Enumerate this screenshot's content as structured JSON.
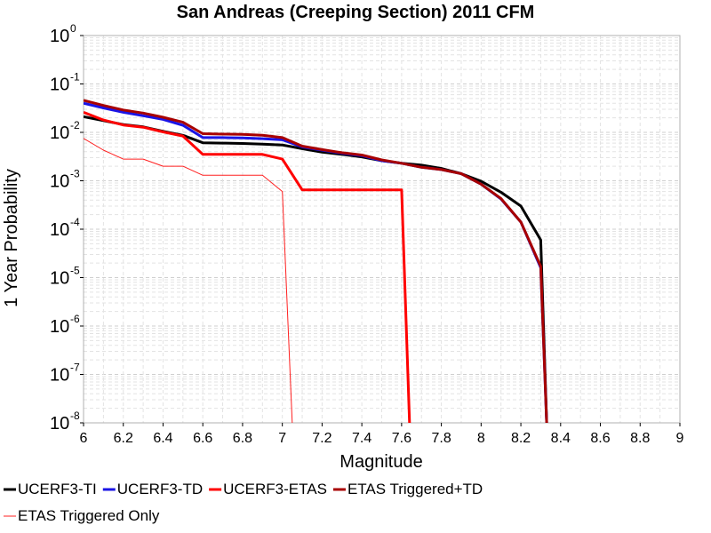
{
  "chart_data": {
    "type": "line",
    "title": "San Andreas (Creeping Section) 2011 CFM",
    "xlabel": "Magnitude",
    "ylabel": "1 Year Probability",
    "xlim": [
      6,
      9
    ],
    "ylim": [
      1e-08,
      1
    ],
    "yscale": "log",
    "grid": true,
    "legend_position": "bottom",
    "xticks": [
      "6",
      "6.2",
      "6.4",
      "6.6",
      "6.8",
      "7",
      "7.2",
      "7.4",
      "7.6",
      "7.8",
      "8",
      "8.2",
      "8.4",
      "8.6",
      "8.8",
      "9"
    ],
    "yticks": [
      {
        "base": "10",
        "exp": "0"
      },
      {
        "base": "10",
        "exp": "-1"
      },
      {
        "base": "10",
        "exp": "-2"
      },
      {
        "base": "10",
        "exp": "-3"
      },
      {
        "base": "10",
        "exp": "-4"
      },
      {
        "base": "10",
        "exp": "-5"
      },
      {
        "base": "10",
        "exp": "-6"
      },
      {
        "base": "10",
        "exp": "-7"
      },
      {
        "base": "10",
        "exp": "-8"
      }
    ],
    "series": [
      {
        "name": "UCERF3-TI",
        "color": "#000000",
        "width": 3,
        "points": [
          [
            6.0,
            0.021
          ],
          [
            6.1,
            0.0175
          ],
          [
            6.2,
            0.0145
          ],
          [
            6.3,
            0.013
          ],
          [
            6.4,
            0.0105
          ],
          [
            6.5,
            0.0087
          ],
          [
            6.6,
            0.0061
          ],
          [
            6.7,
            0.006
          ],
          [
            6.8,
            0.0059
          ],
          [
            6.9,
            0.0057
          ],
          [
            7.0,
            0.0055
          ],
          [
            7.1,
            0.0046
          ],
          [
            7.2,
            0.0039
          ],
          [
            7.3,
            0.0035
          ],
          [
            7.4,
            0.0031
          ],
          [
            7.5,
            0.0026
          ],
          [
            7.6,
            0.0023
          ],
          [
            7.7,
            0.0021
          ],
          [
            7.8,
            0.0018
          ],
          [
            7.9,
            0.0014
          ],
          [
            8.0,
            0.00098
          ],
          [
            8.1,
            0.00058
          ],
          [
            8.2,
            0.0003
          ],
          [
            8.3,
            6e-05
          ],
          [
            8.33,
            1e-08
          ]
        ]
      },
      {
        "name": "UCERF3-TD",
        "color": "#1a14e6",
        "width": 3,
        "points": [
          [
            6.0,
            0.04
          ],
          [
            6.1,
            0.032
          ],
          [
            6.2,
            0.026
          ],
          [
            6.3,
            0.022
          ],
          [
            6.4,
            0.0185
          ],
          [
            6.5,
            0.014
          ],
          [
            6.6,
            0.0078
          ],
          [
            6.7,
            0.0078
          ],
          [
            6.8,
            0.0077
          ],
          [
            6.9,
            0.0074
          ],
          [
            7.0,
            0.007
          ],
          [
            7.1,
            0.005
          ],
          [
            7.2,
            0.0043
          ],
          [
            7.3,
            0.0037
          ],
          [
            7.4,
            0.0033
          ],
          [
            7.5,
            0.0026
          ],
          [
            7.6,
            0.0023
          ],
          [
            7.7,
            0.0019
          ],
          [
            7.8,
            0.0017
          ],
          [
            7.9,
            0.0014
          ],
          [
            8.0,
            0.00085
          ],
          [
            8.1,
            0.00042
          ],
          [
            8.2,
            0.00014
          ],
          [
            8.3,
            1.6e-05
          ],
          [
            8.33,
            1e-08
          ]
        ]
      },
      {
        "name": "UCERF3-ETAS",
        "color": "#ff0000",
        "width": 3,
        "points": [
          [
            6.0,
            0.026
          ],
          [
            6.1,
            0.018
          ],
          [
            6.2,
            0.0142
          ],
          [
            6.3,
            0.0128
          ],
          [
            6.4,
            0.0102
          ],
          [
            6.5,
            0.0084
          ],
          [
            6.6,
            0.0035
          ],
          [
            6.7,
            0.0035
          ],
          [
            6.8,
            0.0035
          ],
          [
            6.9,
            0.0035
          ],
          [
            7.0,
            0.0028
          ],
          [
            7.1,
            0.00065
          ],
          [
            7.2,
            0.00065
          ],
          [
            7.3,
            0.00065
          ],
          [
            7.4,
            0.00065
          ],
          [
            7.5,
            0.00065
          ],
          [
            7.6,
            0.00065
          ],
          [
            7.64,
            1e-08
          ]
        ]
      },
      {
        "name": "ETAS Triggered+TD",
        "color": "#a80000",
        "width": 3,
        "points": [
          [
            6.0,
            0.046
          ],
          [
            6.1,
            0.036
          ],
          [
            6.2,
            0.029
          ],
          [
            6.3,
            0.025
          ],
          [
            6.4,
            0.0205
          ],
          [
            6.5,
            0.0162
          ],
          [
            6.6,
            0.0094
          ],
          [
            6.7,
            0.0092
          ],
          [
            6.8,
            0.0091
          ],
          [
            6.9,
            0.0087
          ],
          [
            7.0,
            0.0078
          ],
          [
            7.1,
            0.0052
          ],
          [
            7.2,
            0.0044
          ],
          [
            7.3,
            0.0038
          ],
          [
            7.4,
            0.0034
          ],
          [
            7.5,
            0.0027
          ],
          [
            7.6,
            0.0023
          ],
          [
            7.7,
            0.0019
          ],
          [
            7.8,
            0.0017
          ],
          [
            7.9,
            0.0014
          ],
          [
            8.0,
            0.00085
          ],
          [
            8.1,
            0.00043
          ],
          [
            8.2,
            0.00014
          ],
          [
            8.3,
            1.7e-05
          ],
          [
            8.33,
            1e-08
          ]
        ]
      },
      {
        "name": "ETAS Triggered Only",
        "color": "#ff2020",
        "width": 1,
        "points": [
          [
            6.0,
            0.0075
          ],
          [
            6.1,
            0.0043
          ],
          [
            6.2,
            0.0028
          ],
          [
            6.3,
            0.0028
          ],
          [
            6.4,
            0.002
          ],
          [
            6.5,
            0.002
          ],
          [
            6.6,
            0.0013
          ],
          [
            6.7,
            0.0013
          ],
          [
            6.8,
            0.0013
          ],
          [
            6.9,
            0.0013
          ],
          [
            7.0,
            0.0006
          ],
          [
            7.05,
            1e-08
          ]
        ]
      }
    ]
  }
}
